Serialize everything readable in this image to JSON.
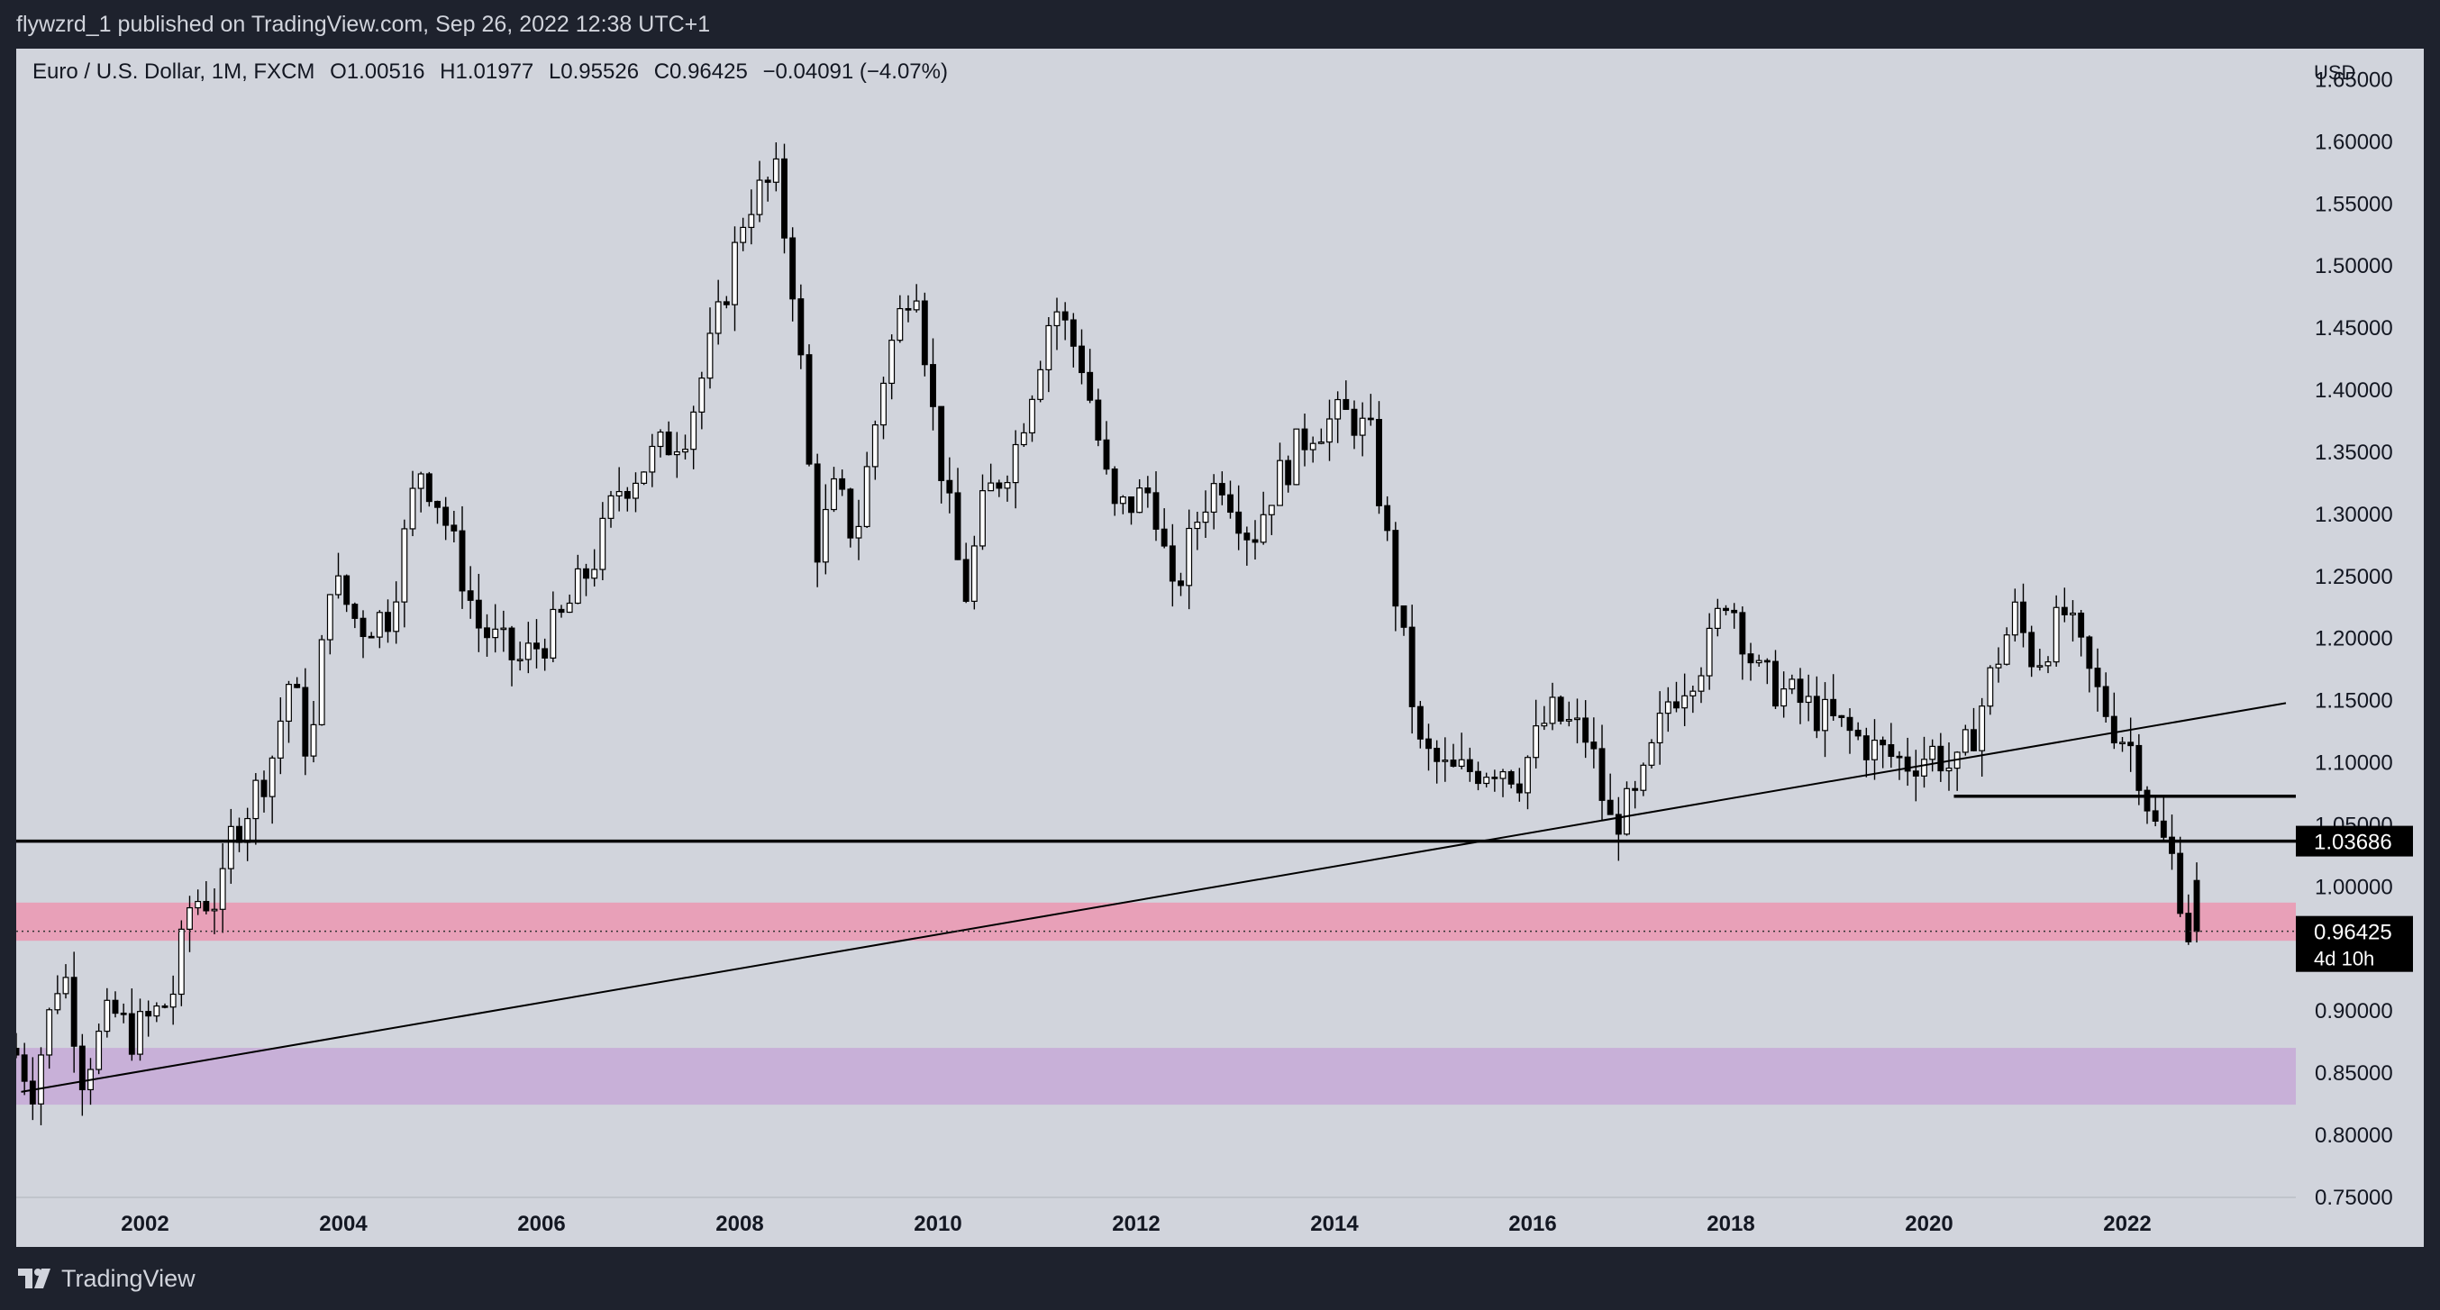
{
  "header": {
    "publish_line": "flywzrd_1 published on TradingView.com, Sep 26, 2022 12:38 UTC+1"
  },
  "legend": {
    "symbol": "Euro / U.S. Dollar, 1M, FXCM",
    "open": "O1.00516",
    "high": "H1.01977",
    "low": "L0.95526",
    "close": "C0.96425",
    "change": "−0.04091 (−4.07%)"
  },
  "footer": {
    "brand": "TradingView"
  },
  "chart_data": {
    "type": "candlestick",
    "title": "Euro / U.S. Dollar, 1M, FXCM",
    "currency_label": "USD",
    "y_ticks": [
      "1.65000",
      "1.60000",
      "1.55000",
      "1.50000",
      "1.45000",
      "1.40000",
      "1.35000",
      "1.30000",
      "1.25000",
      "1.20000",
      "1.15000",
      "1.10000",
      "1.05000",
      "1.00000",
      "0.95000",
      "0.90000",
      "0.85000",
      "0.80000",
      "0.75000"
    ],
    "x_ticks": [
      "2002",
      "2004",
      "2006",
      "2008",
      "2010",
      "2012",
      "2014",
      "2016",
      "2018",
      "2020",
      "2022"
    ],
    "ylim": [
      0.75,
      1.675
    ],
    "xlim_years": [
      2000.75,
      2023.75
    ],
    "colors": {
      "background": "#d1d4dc",
      "candle_up": "#ffffff",
      "candle_down": "#000000",
      "outline": "#000000",
      "supply_zone": "#e8a0b8",
      "demand_zone": "#c8b0d8"
    },
    "anchors": [
      [
        2000.8,
        0.87
      ],
      [
        2001.0,
        0.84
      ],
      [
        2001.3,
        0.94
      ],
      [
        2001.5,
        0.85
      ],
      [
        2001.8,
        0.9
      ],
      [
        2002.0,
        0.88
      ],
      [
        2002.4,
        0.91
      ],
      [
        2002.6,
        0.99
      ],
      [
        2002.9,
        0.99
      ],
      [
        2003.0,
        1.04
      ],
      [
        2003.4,
        1.1
      ],
      [
        2003.6,
        1.17
      ],
      [
        2003.8,
        1.1
      ],
      [
        2004.0,
        1.25
      ],
      [
        2004.3,
        1.21
      ],
      [
        2004.6,
        1.22
      ],
      [
        2004.9,
        1.34
      ],
      [
        2005.1,
        1.31
      ],
      [
        2005.5,
        1.21
      ],
      [
        2005.9,
        1.18
      ],
      [
        2006.3,
        1.21
      ],
      [
        2006.7,
        1.27
      ],
      [
        2006.9,
        1.32
      ],
      [
        2007.3,
        1.35
      ],
      [
        2007.6,
        1.37
      ],
      [
        2007.9,
        1.45
      ],
      [
        2008.2,
        1.55
      ],
      [
        2008.5,
        1.57
      ],
      [
        2008.7,
        1.47
      ],
      [
        2008.9,
        1.27
      ],
      [
        2009.1,
        1.32
      ],
      [
        2009.3,
        1.28
      ],
      [
        2009.6,
        1.42
      ],
      [
        2009.9,
        1.5
      ],
      [
        2010.1,
        1.37
      ],
      [
        2010.4,
        1.23
      ],
      [
        2010.6,
        1.31
      ],
      [
        2010.9,
        1.35
      ],
      [
        2011.1,
        1.41
      ],
      [
        2011.3,
        1.47
      ],
      [
        2011.6,
        1.42
      ],
      [
        2011.9,
        1.3
      ],
      [
        2012.3,
        1.32
      ],
      [
        2012.5,
        1.23
      ],
      [
        2012.8,
        1.31
      ],
      [
        2013.0,
        1.33
      ],
      [
        2013.3,
        1.28
      ],
      [
        2013.5,
        1.32
      ],
      [
        2013.9,
        1.37
      ],
      [
        2014.3,
        1.38
      ],
      [
        2014.5,
        1.36
      ],
      [
        2014.7,
        1.26
      ],
      [
        2015.0,
        1.11
      ],
      [
        2015.3,
        1.09
      ],
      [
        2015.8,
        1.1
      ],
      [
        2016.0,
        1.09
      ],
      [
        2016.3,
        1.14
      ],
      [
        2016.7,
        1.12
      ],
      [
        2016.9,
        1.05
      ],
      [
        2017.2,
        1.07
      ],
      [
        2017.5,
        1.15
      ],
      [
        2017.9,
        1.19
      ],
      [
        2018.1,
        1.24
      ],
      [
        2018.4,
        1.17
      ],
      [
        2018.8,
        1.15
      ],
      [
        2019.2,
        1.13
      ],
      [
        2019.6,
        1.11
      ],
      [
        2019.9,
        1.1
      ],
      [
        2020.2,
        1.11
      ],
      [
        2020.4,
        1.09
      ],
      [
        2020.6,
        1.13
      ],
      [
        2020.8,
        1.18
      ],
      [
        2021.0,
        1.22
      ],
      [
        2021.2,
        1.18
      ],
      [
        2021.5,
        1.22
      ],
      [
        2021.8,
        1.16
      ],
      [
        2022.0,
        1.13
      ],
      [
        2022.2,
        1.11
      ],
      [
        2022.4,
        1.05
      ],
      [
        2022.6,
        1.02
      ],
      [
        2022.75,
        0.9643
      ]
    ],
    "last_candle": {
      "date": "2022-09",
      "open": 1.00516,
      "high": 1.01977,
      "low": 0.95526,
      "close": 0.96425
    },
    "horizontal_levels": [
      {
        "value": 1.03686,
        "label": "1.03686",
        "from_year": 2000.75
      },
      {
        "value": 1.073,
        "from_year": 2020.3
      }
    ],
    "current_price": {
      "value": 0.96425,
      "label": "0.96425",
      "countdown": "4d 10h"
    },
    "zones": [
      {
        "name": "supply",
        "top": 0.987,
        "bottom": 0.957,
        "color": "#e8a0b8"
      },
      {
        "name": "demand",
        "top": 0.87,
        "bottom": 0.825,
        "color": "#c8b0d8"
      }
    ],
    "trendline": {
      "start": [
        2000.8,
        0.835
      ],
      "end": [
        2023.65,
        1.148
      ]
    }
  }
}
